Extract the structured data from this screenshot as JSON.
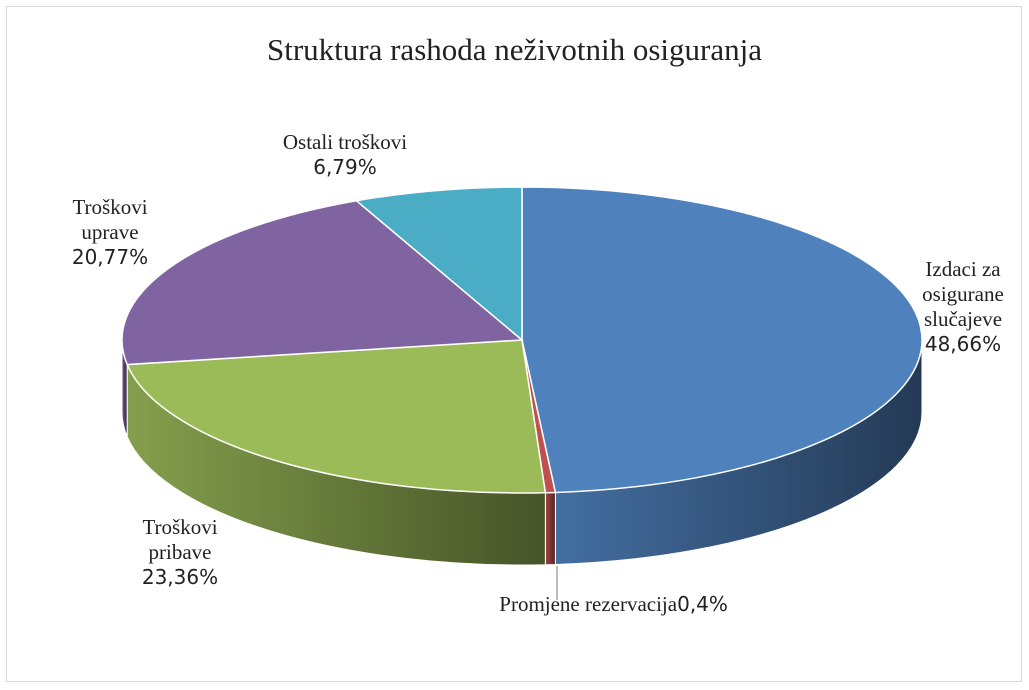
{
  "chart_data": {
    "type": "pie",
    "title": "Struktura rashoda neživotnih osiguranja",
    "categories": [
      "Izdaci za osigurane slučajeve",
      "Promjene rezervacija",
      "Troškovi pribave",
      "Troškovi uprave",
      "Ostali troškovi"
    ],
    "values": [
      48.66,
      0.4,
      23.36,
      20.77,
      6.79
    ],
    "value_labels": [
      "48,66%",
      "0,4%",
      "23,36%",
      "20,77%",
      "6,79%"
    ],
    "colors": [
      "#4f81bd",
      "#c0504d",
      "#9bbb59",
      "#8064a2",
      "#4bacc6"
    ]
  }
}
